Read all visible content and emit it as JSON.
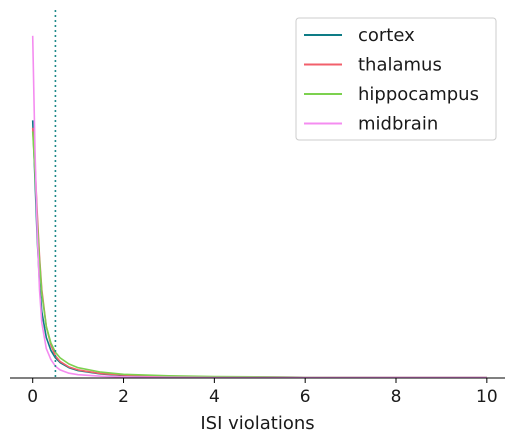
{
  "chart_data": {
    "type": "line",
    "title": "",
    "xlabel": "ISI violations",
    "ylabel": "",
    "xlim": [
      -0.5,
      10.4
    ],
    "ylim": [
      0,
      1
    ],
    "x_ticks": [
      0,
      2,
      4,
      6,
      8,
      10
    ],
    "y_axis_visible": false,
    "grid": false,
    "legend_position": "top-right",
    "reference_line": {
      "x": 0.5,
      "style": "dotted",
      "color": "#1f8a8a"
    },
    "series": [
      {
        "name": "cortex",
        "color": "#0e7c86",
        "x": [
          0,
          0.05,
          0.1,
          0.15,
          0.2,
          0.3,
          0.4,
          0.5,
          0.6,
          0.8,
          1.0,
          1.5,
          2,
          3,
          4,
          6,
          8,
          10
        ],
        "y": [
          0.7,
          0.54,
          0.38,
          0.26,
          0.18,
          0.11,
          0.075,
          0.055,
          0.042,
          0.028,
          0.02,
          0.011,
          0.007,
          0.004,
          0.003,
          0.002,
          0.001,
          0.001
        ]
      },
      {
        "name": "thalamus",
        "color": "#f25f6b",
        "x": [
          0,
          0.05,
          0.1,
          0.15,
          0.2,
          0.3,
          0.4,
          0.5,
          0.6,
          0.8,
          1.0,
          1.5,
          2,
          3,
          4,
          6,
          8,
          10
        ],
        "y": [
          0.68,
          0.58,
          0.45,
          0.33,
          0.24,
          0.14,
          0.09,
          0.06,
          0.045,
          0.03,
          0.022,
          0.012,
          0.008,
          0.005,
          0.003,
          0.002,
          0.001,
          0.001
        ]
      },
      {
        "name": "hippocampus",
        "color": "#7cd14f",
        "x": [
          0,
          0.05,
          0.1,
          0.15,
          0.2,
          0.3,
          0.4,
          0.5,
          0.6,
          0.8,
          1.0,
          1.5,
          2,
          3,
          4,
          6,
          8,
          10
        ],
        "y": [
          0.67,
          0.56,
          0.43,
          0.32,
          0.23,
          0.14,
          0.095,
          0.07,
          0.055,
          0.038,
          0.028,
          0.016,
          0.01,
          0.006,
          0.004,
          0.002,
          0.001,
          0.001
        ]
      },
      {
        "name": "midbrain",
        "color": "#f48cf0",
        "x": [
          0,
          0.05,
          0.1,
          0.15,
          0.2,
          0.3,
          0.4,
          0.5,
          0.6,
          0.8,
          1.0,
          1.5,
          2,
          3,
          4,
          6,
          8,
          10
        ],
        "y": [
          0.93,
          0.62,
          0.4,
          0.24,
          0.15,
          0.08,
          0.05,
          0.032,
          0.022,
          0.013,
          0.009,
          0.005,
          0.003,
          0.002,
          0.001,
          0.001,
          0.001,
          0.001
        ]
      }
    ]
  }
}
